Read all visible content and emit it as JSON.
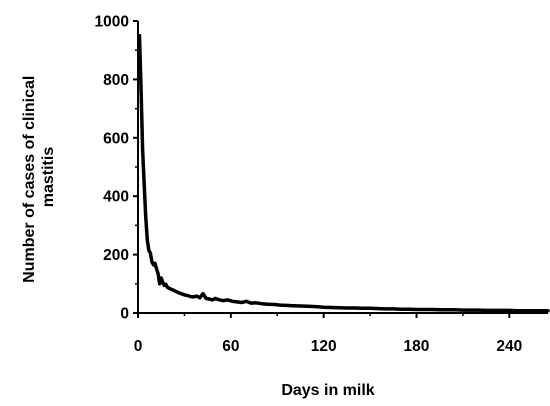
{
  "chart_data": {
    "type": "line",
    "title": "",
    "xlabel": "Days in milk",
    "ylabel_lines": [
      "Number of cases of clinical",
      "mastitis"
    ],
    "xlim": [
      0,
      265
    ],
    "ylim": [
      0,
      1000
    ],
    "xticks": [
      0,
      60,
      120,
      180,
      240
    ],
    "yticks": [
      0,
      200,
      400,
      600,
      800,
      1000
    ],
    "grid": false,
    "legend": "none",
    "line_color": "#000000",
    "series": [
      {
        "x": [
          1,
          2,
          3,
          4,
          5,
          6,
          7,
          8,
          9,
          10,
          11,
          12,
          13,
          14,
          15,
          16,
          17,
          18,
          19,
          20,
          22,
          24,
          26,
          28,
          30,
          32,
          34,
          36,
          38,
          40,
          42,
          44,
          46,
          48,
          50,
          52,
          55,
          58,
          61,
          64,
          67,
          70,
          73,
          76,
          80,
          84,
          88,
          92,
          96,
          100,
          105,
          110,
          115,
          120,
          125,
          130,
          135,
          140,
          145,
          150,
          155,
          160,
          165,
          170,
          175,
          180,
          185,
          190,
          195,
          200,
          205,
          210,
          215,
          220,
          225,
          230,
          235,
          240,
          245,
          250,
          255,
          260,
          265
        ],
        "y": [
          950,
          760,
          560,
          440,
          330,
          250,
          215,
          205,
          175,
          165,
          170,
          150,
          135,
          100,
          120,
          105,
          95,
          98,
          88,
          85,
          80,
          75,
          70,
          66,
          62,
          60,
          56,
          55,
          58,
          52,
          66,
          50,
          48,
          45,
          50,
          46,
          42,
          45,
          40,
          38,
          36,
          40,
          34,
          35,
          32,
          30,
          29,
          27,
          26,
          25,
          24,
          23,
          22,
          20,
          19,
          18,
          17,
          17,
          16,
          16,
          15,
          14,
          14,
          13,
          13,
          12,
          12,
          12,
          11,
          11,
          11,
          10,
          10,
          10,
          9,
          9,
          9,
          9,
          8,
          8,
          8,
          8,
          8
        ]
      }
    ]
  }
}
